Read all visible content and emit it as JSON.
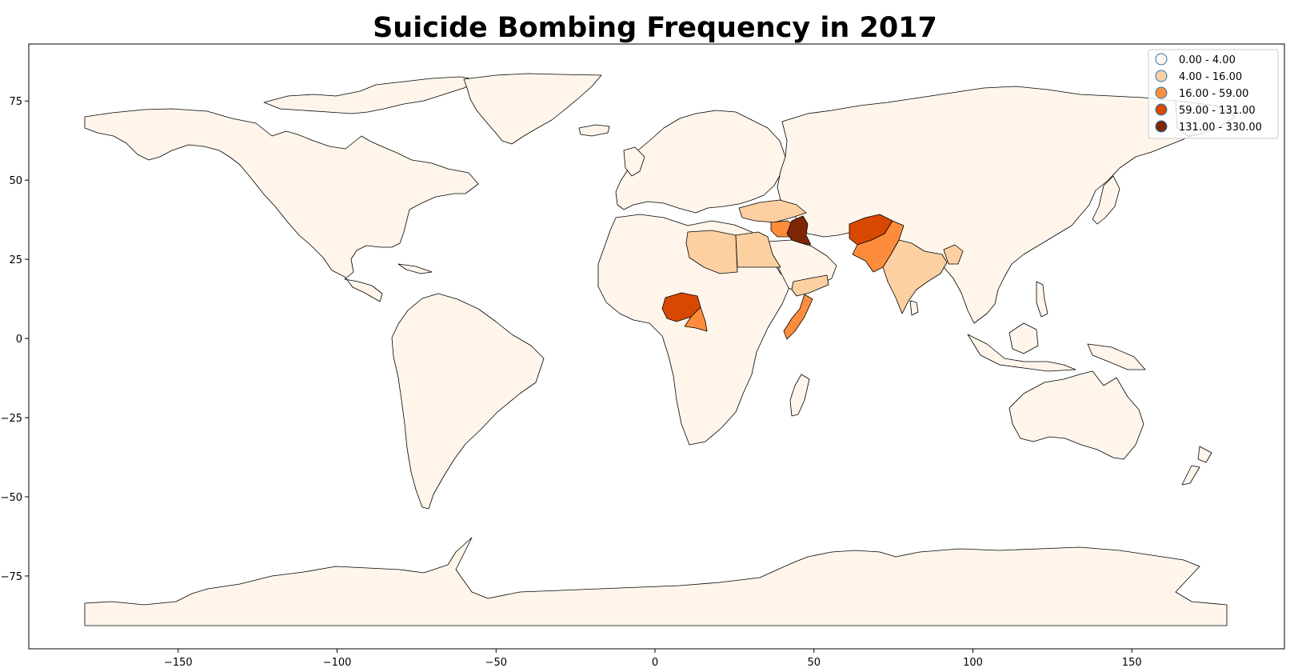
{
  "chart_data": {
    "type": "choropleth",
    "title": "Suicide Bombing Frequency in 2017",
    "xlim": [
      -197,
      198
    ],
    "ylim": [
      -98,
      93
    ],
    "x_ticks": [
      -150,
      -100,
      -50,
      0,
      50,
      100,
      150
    ],
    "y_ticks": [
      75,
      50,
      25,
      0,
      -25,
      -50,
      -75
    ],
    "x_tick_labels": [
      "−150",
      "−100",
      "−50",
      "0",
      "50",
      "100",
      "150"
    ],
    "y_tick_labels": [
      "75",
      "50",
      "25",
      "0",
      "−25",
      "−50",
      "−75"
    ],
    "legend_position": "top-right",
    "legend": [
      {
        "label": "0.00 - 4.00",
        "color": "#fff5eb",
        "edge": "#1f77b4"
      },
      {
        "label": "4.00 - 16.00",
        "color": "#fdd0a2",
        "edge": "#1f77b4"
      },
      {
        "label": "16.00 - 59.00",
        "color": "#fd8d3c",
        "edge": "#1f77b4"
      },
      {
        "label": "59.00 - 131.00",
        "color": "#d94801",
        "edge": "#1f77b4"
      },
      {
        "label": "131.00 - 330.00",
        "color": "#7f2704",
        "edge": "#1f77b4"
      }
    ],
    "highlighted_countries": [
      {
        "name": "Turkey",
        "class": "4.00 - 16.00",
        "color": "#fdd0a2"
      },
      {
        "name": "Libya",
        "class": "4.00 - 16.00",
        "color": "#fdd0a2"
      },
      {
        "name": "Egypt",
        "class": "4.00 - 16.00",
        "color": "#fdd0a2"
      },
      {
        "name": "Yemen",
        "class": "4.00 - 16.00",
        "color": "#fdd0a2"
      },
      {
        "name": "India",
        "class": "4.00 - 16.00",
        "color": "#fdd0a2"
      },
      {
        "name": "Bangladesh",
        "class": "4.00 - 16.00",
        "color": "#fdd0a2"
      },
      {
        "name": "Syria",
        "class": "16.00 - 59.00",
        "color": "#fd8d3c"
      },
      {
        "name": "Pakistan",
        "class": "16.00 - 59.00",
        "color": "#fd8d3c"
      },
      {
        "name": "Cameroon",
        "class": "16.00 - 59.00",
        "color": "#fd8d3c"
      },
      {
        "name": "Somalia",
        "class": "16.00 - 59.00",
        "color": "#fd8d3c"
      },
      {
        "name": "Afghanistan",
        "class": "59.00 - 131.00",
        "color": "#d94801"
      },
      {
        "name": "Nigeria",
        "class": "59.00 - 131.00",
        "color": "#d94801"
      },
      {
        "name": "Iraq",
        "class": "131.00 - 330.00",
        "color": "#7f2704"
      }
    ],
    "default_color": "#fff5eb",
    "xlabel": "",
    "ylabel": ""
  }
}
